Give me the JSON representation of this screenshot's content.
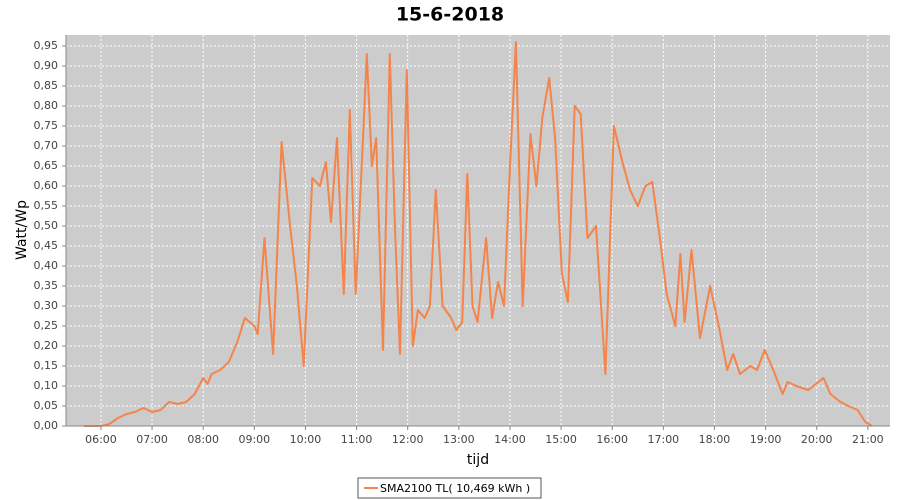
{
  "chart_data": {
    "type": "line",
    "title": "15-6-2018",
    "x_label": "tijd",
    "y_label": "Watt/Wp",
    "x": [
      "05:40",
      "06:00",
      "06:10",
      "06:20",
      "06:30",
      "06:40",
      "06:50",
      "07:00",
      "07:10",
      "07:20",
      "07:30",
      "07:40",
      "07:50",
      "08:00",
      "08:05",
      "08:10",
      "08:20",
      "08:30",
      "08:40",
      "08:49",
      "09:00",
      "09:04",
      "09:12",
      "09:22",
      "09:32",
      "09:42",
      "09:50",
      "09:58",
      "10:08",
      "10:17",
      "10:24",
      "10:30",
      "10:37",
      "10:45",
      "10:52",
      "10:59",
      "11:08",
      "11:12",
      "11:18",
      "11:23",
      "11:31",
      "11:39",
      "11:45",
      "11:51",
      "11:59",
      "12:06",
      "12:12",
      "12:20",
      "12:26",
      "12:33",
      "12:41",
      "12:51",
      "12:57",
      "13:04",
      "13:10",
      "13:16",
      "13:22",
      "13:32",
      "13:39",
      "13:46",
      "13:53",
      "14:00",
      "14:07",
      "14:15",
      "14:24",
      "14:31",
      "14:38",
      "14:46",
      "14:53",
      "15:01",
      "15:08",
      "15:16",
      "15:23",
      "15:31",
      "15:41",
      "15:52",
      "16:02",
      "16:12",
      "16:21",
      "16:30",
      "16:39",
      "16:47",
      "16:56",
      "17:04",
      "17:14",
      "17:20",
      "17:25",
      "17:33",
      "17:43",
      "17:55",
      "18:06",
      "18:15",
      "18:22",
      "18:30",
      "18:42",
      "18:50",
      "18:59",
      "19:09",
      "19:20",
      "19:26",
      "19:36",
      "19:50",
      "20:02",
      "20:08",
      "20:16",
      "20:28",
      "20:37",
      "20:48",
      "20:57",
      "21:05"
    ],
    "series": [
      {
        "name": "SMA2100 TL( 10,469 kWh )",
        "color": "#f5844a",
        "values": [
          0,
          0,
          0.005,
          0.02,
          0.03,
          0.035,
          0.045,
          0.035,
          0.04,
          0.06,
          0.055,
          0.06,
          0.08,
          0.12,
          0.105,
          0.13,
          0.14,
          0.16,
          0.21,
          0.27,
          0.25,
          0.23,
          0.47,
          0.18,
          0.71,
          0.5,
          0.35,
          0.15,
          0.62,
          0.6,
          0.66,
          0.51,
          0.72,
          0.33,
          0.79,
          0.33,
          0.74,
          0.93,
          0.65,
          0.72,
          0.19,
          0.93,
          0.5,
          0.18,
          0.89,
          0.2,
          0.29,
          0.27,
          0.3,
          0.59,
          0.3,
          0.27,
          0.24,
          0.26,
          0.63,
          0.3,
          0.26,
          0.47,
          0.27,
          0.36,
          0.3,
          0.65,
          0.96,
          0.3,
          0.73,
          0.6,
          0.77,
          0.87,
          0.72,
          0.38,
          0.31,
          0.8,
          0.78,
          0.47,
          0.5,
          0.13,
          0.75,
          0.66,
          0.59,
          0.55,
          0.6,
          0.61,
          0.47,
          0.33,
          0.25,
          0.43,
          0.26,
          0.44,
          0.22,
          0.35,
          0.24,
          0.14,
          0.18,
          0.13,
          0.15,
          0.14,
          0.19,
          0.14,
          0.08,
          0.11,
          0.1,
          0.09,
          0.11,
          0.12,
          0.08,
          0.06,
          0.05,
          0.04,
          0.01,
          0
        ]
      }
    ],
    "xlim": [
      "05:19",
      "21:26"
    ],
    "xticks": [
      "06:00",
      "07:00",
      "08:00",
      "09:00",
      "10:00",
      "11:00",
      "12:00",
      "13:00",
      "14:00",
      "15:00",
      "16:00",
      "17:00",
      "18:00",
      "19:00",
      "20:00",
      "21:00"
    ],
    "ylim": [
      0,
      0.9775
    ],
    "yticks": [
      {
        "value": 0,
        "label": "0,00"
      },
      {
        "value": 0.05,
        "label": "0,05"
      },
      {
        "value": 0.1,
        "label": "0,10"
      },
      {
        "value": 0.15,
        "label": "0,15"
      },
      {
        "value": 0.2,
        "label": "0,20"
      },
      {
        "value": 0.25,
        "label": "0,25"
      },
      {
        "value": 0.3,
        "label": "0,30"
      },
      {
        "value": 0.35,
        "label": "0,35"
      },
      {
        "value": 0.4,
        "label": "0,40"
      },
      {
        "value": 0.45,
        "label": "0,45"
      },
      {
        "value": 0.5,
        "label": "0,50"
      },
      {
        "value": 0.55,
        "label": "0,55"
      },
      {
        "value": 0.6,
        "label": "0,60"
      },
      {
        "value": 0.65,
        "label": "0,65"
      },
      {
        "value": 0.7,
        "label": "0,70"
      },
      {
        "value": 0.75,
        "label": "0,75"
      },
      {
        "value": 0.8,
        "label": "0,80"
      },
      {
        "value": 0.85,
        "label": "0,85"
      },
      {
        "value": 0.9,
        "label": "0,90"
      },
      {
        "value": 0.95,
        "label": "0,95"
      }
    ],
    "grid": true
  }
}
